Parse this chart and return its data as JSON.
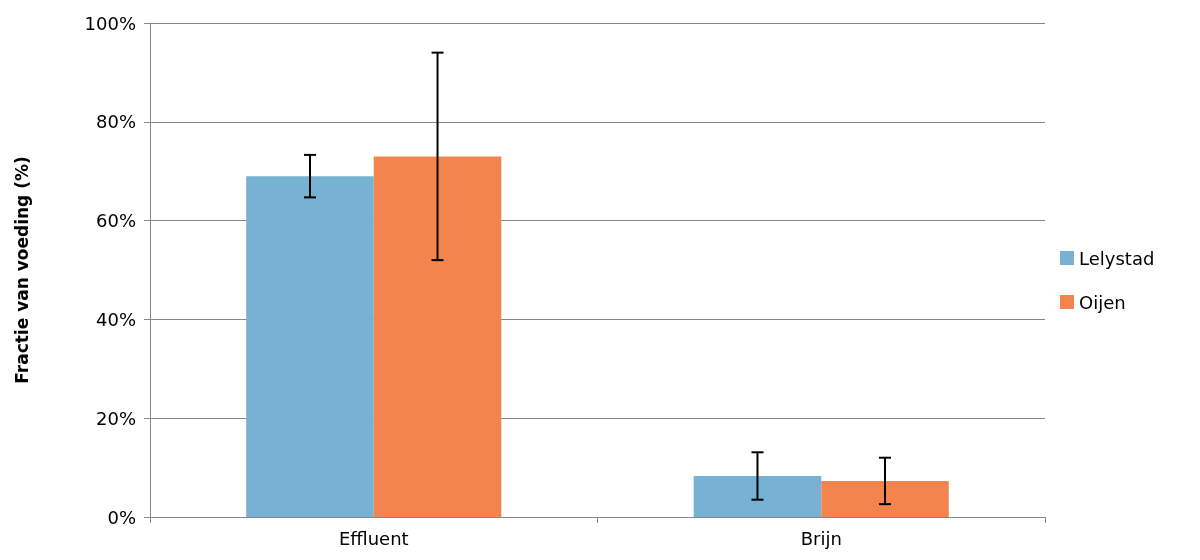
{
  "chart_data": {
    "type": "bar",
    "ylabel": "Fractie van voeding (%)",
    "categories": [
      "Effluent",
      "Brijn"
    ],
    "series": [
      {
        "name": "Lelystad",
        "color": "#77b1d4",
        "values": [
          69,
          8.3
        ],
        "errors": [
          4.3,
          4.8
        ]
      },
      {
        "name": "Oijen",
        "color": "#f4844e",
        "values": [
          73,
          7.3
        ],
        "errors": [
          21,
          4.7
        ]
      }
    ],
    "ylim": [
      0,
      100
    ],
    "yticks": [
      {
        "value": 0,
        "label": "0%"
      },
      {
        "value": 20,
        "label": "20%"
      },
      {
        "value": 40,
        "label": "40%"
      },
      {
        "value": 60,
        "label": "60%"
      },
      {
        "value": 80,
        "label": "80%"
      },
      {
        "value": 100,
        "label": "100%"
      }
    ],
    "grid": "y",
    "legend": "right"
  }
}
